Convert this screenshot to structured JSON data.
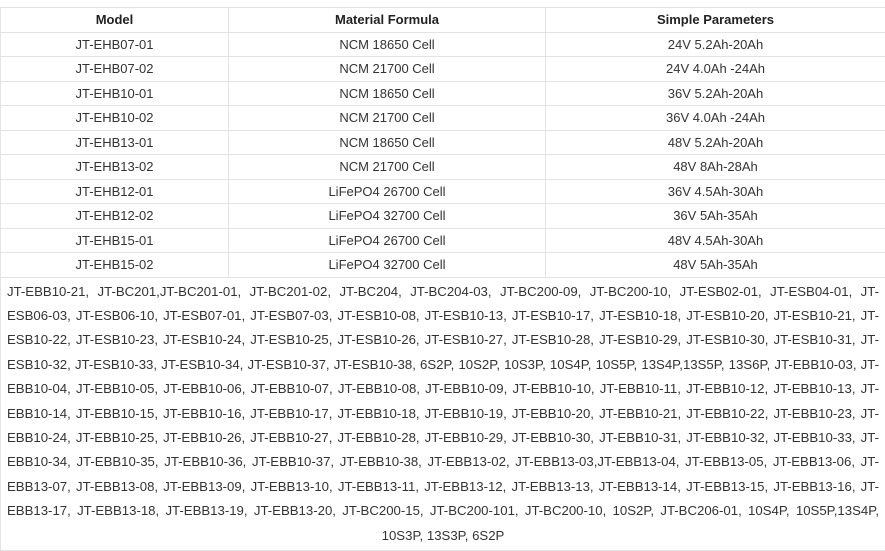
{
  "table": {
    "header": [
      "Model",
      "Material Formula",
      "Simple Parameters"
    ],
    "rows": [
      [
        "JT-EHB07-01",
        "NCM 18650 Cell",
        "24V 5.2Ah-20Ah"
      ],
      [
        "JT-EHB07-02",
        "NCM 21700 Cell",
        "24V 4.0Ah -24Ah"
      ],
      [
        "JT-EHB10-01",
        "NCM 18650 Cell",
        "36V 5.2Ah-20Ah"
      ],
      [
        "JT-EHB10-02",
        "NCM 21700 Cell",
        "36V 4.0Ah -24Ah"
      ],
      [
        "JT-EHB13-01",
        "NCM 18650 Cell",
        "48V 5.2Ah-20Ah"
      ],
      [
        "JT-EHB13-02",
        "NCM 21700 Cell",
        "48V 8Ah-28Ah"
      ],
      [
        "JT-EHB12-01",
        "LiFePO4 26700 Cell",
        "36V 4.5Ah-30Ah"
      ],
      [
        "JT-EHB12-02",
        "LiFePO4 32700 Cell",
        "36V 5Ah-35Ah"
      ],
      [
        "JT-EHB15-01",
        "LiFePO4 26700 Cell",
        "48V 4.5Ah-30Ah"
      ],
      [
        "JT-EHB15-02",
        "LiFePO4 32700 Cell",
        "48V 5Ah-35Ah"
      ]
    ],
    "note": "JT-EBB10-21, JT-BC201,JT-BC201-01, JT-BC201-02, JT-BC204, JT-BC204-03, JT-BC200-09, JT-BC200-10, JT-ESB02-01, JT-ESB04-01, JT-ESB06-03, JT-ESB06-10, JT-ESB07-01, JT-ESB07-03, JT-ESB10-08, JT-ESB10-13, JT-ESB10-17, JT-ESB10-18, JT-ESB10-20, JT-ESB10-21, JT-ESB10-22, JT-ESB10-23, JT-ESB10-24, JT-ESB10-25, JT-ESB10-26, JT-ESB10-27, JT-ESB10-28, JT-ESB10-29, JT-ESB10-30, JT-ESB10-31, JT-ESB10-32, JT-ESB10-33, JT-ESB10-34, JT-ESB10-37, JT-ESB10-38, 6S2P, 10S2P, 10S3P, 10S4P, 10S5P, 13S4P,13S5P, 13S6P, JT-EBB10-03, JT-EBB10-04, JT-EBB10-05, JT-EBB10-06, JT-EBB10-07, JT-EBB10-08, JT-EBB10-09, JT-EBB10-10, JT-EBB10-11, JT-EBB10-12, JT-EBB10-13, JT-EBB10-14, JT-EBB10-15, JT-EBB10-16, JT-EBB10-17, JT-EBB10-18, JT-EBB10-19, JT-EBB10-20, JT-EBB10-21, JT-EBB10-22, JT-EBB10-23, JT-EBB10-24, JT-EBB10-25, JT-EBB10-26, JT-EBB10-27, JT-EBB10-28, JT-EBB10-29, JT-EBB10-30, JT-EBB10-31, JT-EBB10-32, JT-EBB10-33, JT-EBB10-34, JT-EBB10-35, JT-EBB10-36, JT-EBB10-37, JT-EBB10-38, JT-EBB13-02, JT-EBB13-03,JT-EBB13-04, JT-EBB13-05, JT-EBB13-06, JT-EBB13-07, JT-EBB13-08, JT-EBB13-09, JT-EBB13-10, JT-EBB13-11, JT-EBB13-12, JT-EBB13-13, JT-EBB13-14, JT-EBB13-15, JT-EBB13-16, JT-EBB13-17, JT-EBB13-18, JT-EBB13-19, JT-EBB13-20, JT-BC200-15, JT-BC200-101, JT-BC200-10, 10S2P, JT-BC206-01, 10S4P, 10S5P,13S4P, 10S3P, 13S3P, 6S2P"
  }
}
